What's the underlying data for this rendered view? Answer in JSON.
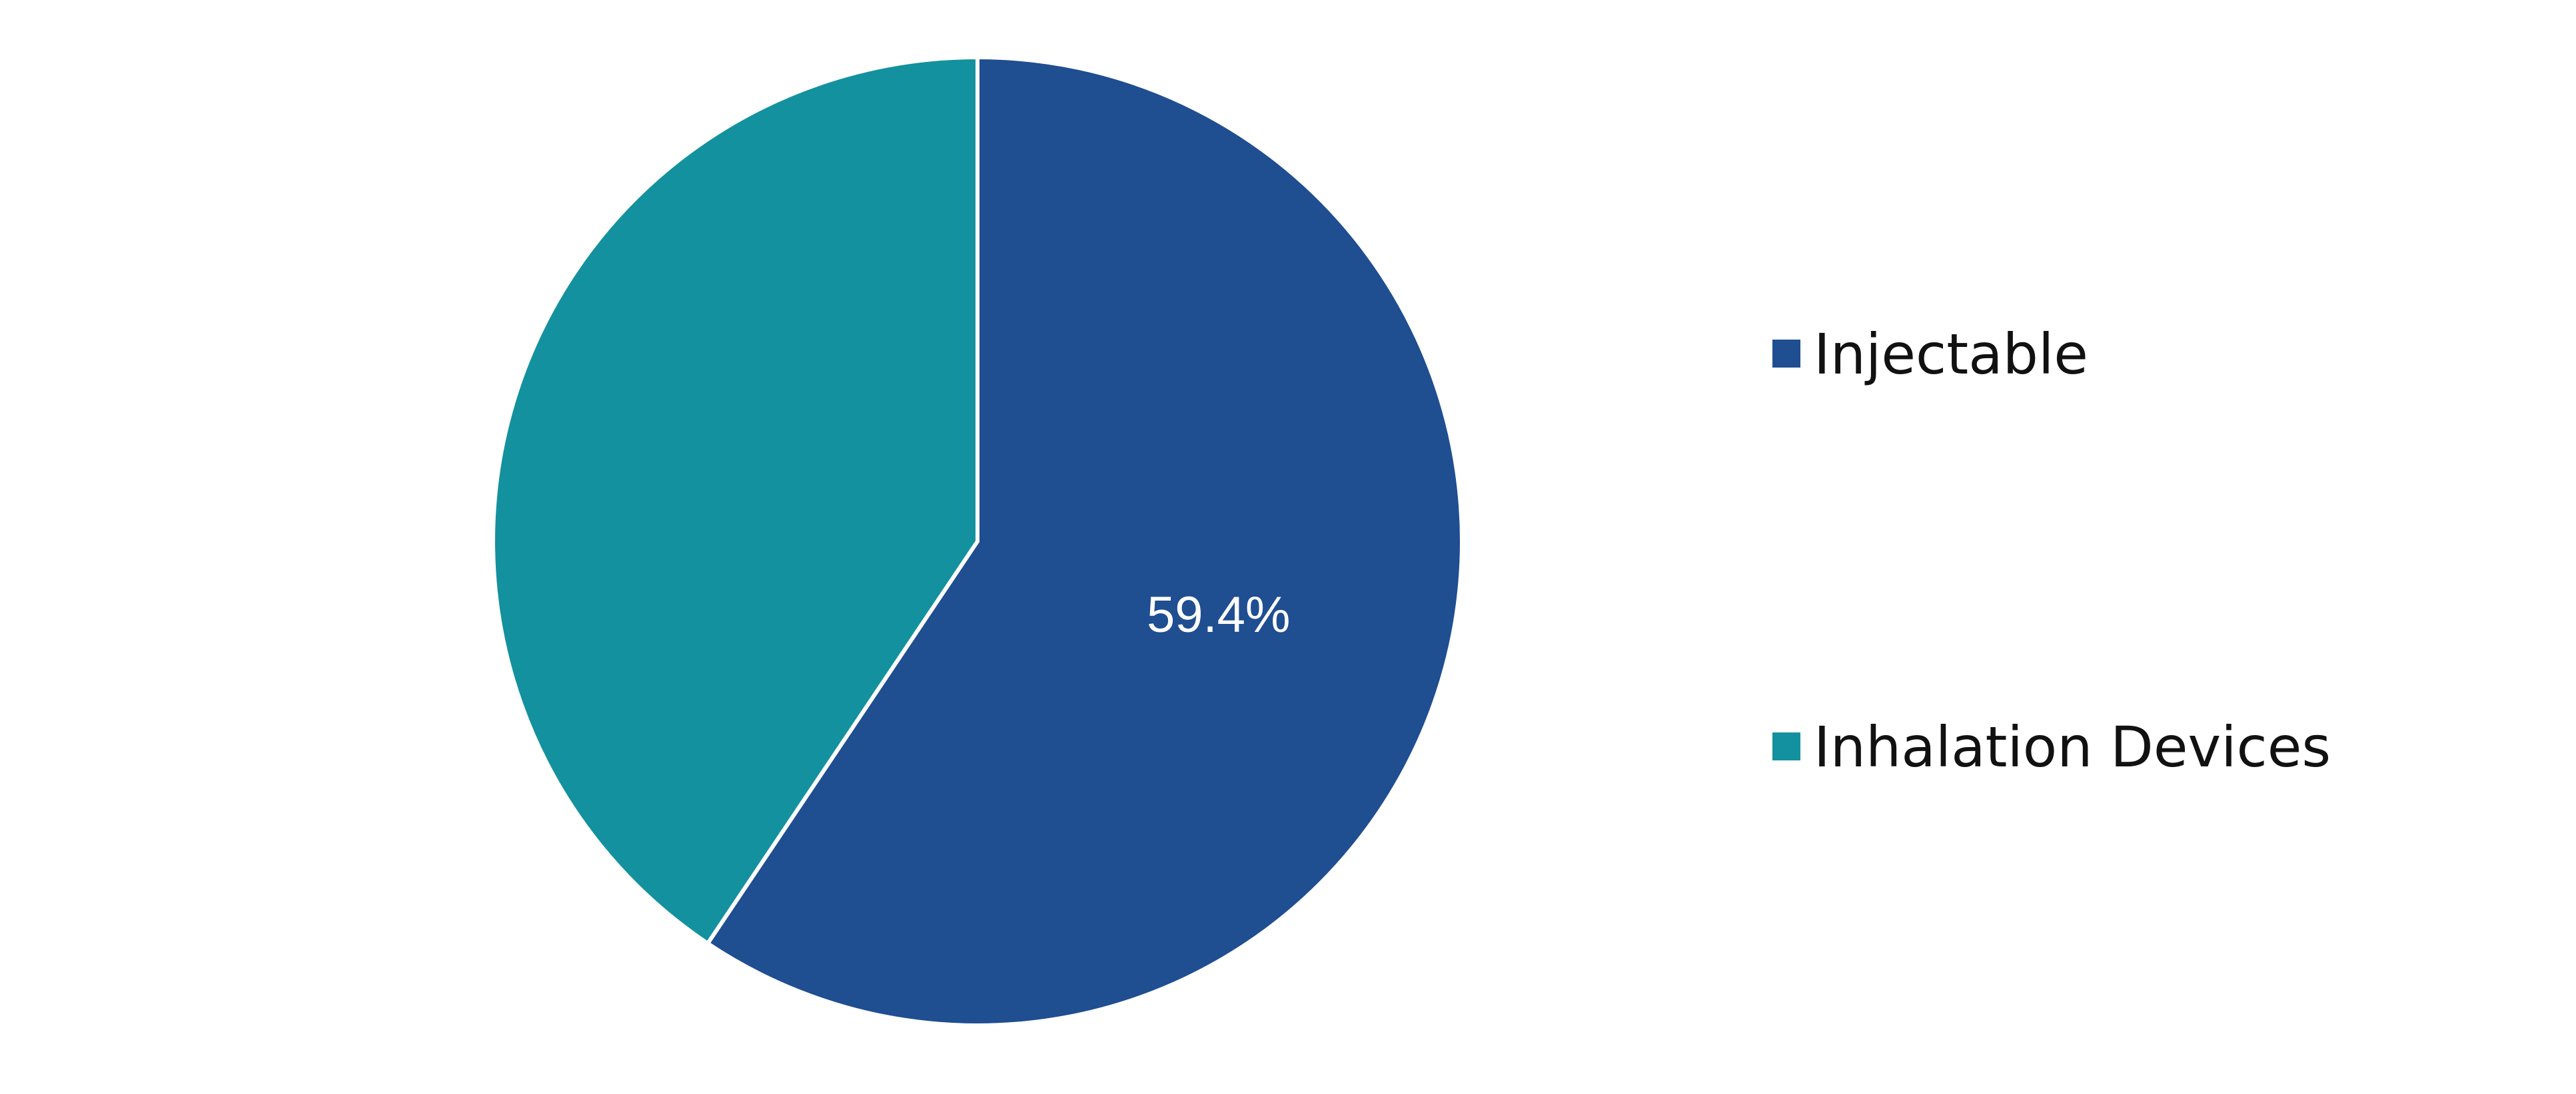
{
  "chart_data": {
    "type": "pie",
    "categories": [
      "Injectable",
      "Inhalation Devices"
    ],
    "values": [
      59.4,
      40.6
    ],
    "unit": "%",
    "colors": [
      "#1f4e91",
      "#13919e"
    ],
    "start_angle": "12 o'clock",
    "direction": "clockwise",
    "data_labels": [
      "59.4%",
      ""
    ],
    "legend": {
      "position": "right",
      "entries": [
        "Injectable",
        "Inhalation Devices"
      ]
    }
  }
}
